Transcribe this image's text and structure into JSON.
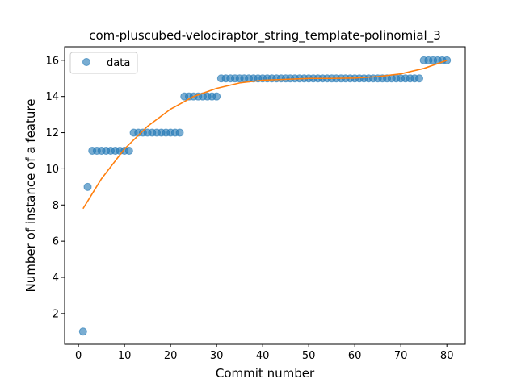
{
  "chart_data": {
    "type": "scatter",
    "title": "com-pluscubed-velociraptor_string_template-polinomial_3",
    "xlabel": "Commit number",
    "ylabel": "Number of instance of a feature",
    "xlim": [
      -3,
      84
    ],
    "ylim": [
      0.3,
      16.75
    ],
    "xticks": [
      0,
      10,
      20,
      30,
      40,
      50,
      60,
      70,
      80
    ],
    "yticks": [
      2,
      4,
      6,
      8,
      10,
      12,
      14,
      16
    ],
    "grid": false,
    "legend_position": "top-left",
    "series": [
      {
        "name": "data",
        "kind": "scatter",
        "color": "#1f77b4",
        "x": [
          1,
          2,
          3,
          4,
          5,
          6,
          7,
          8,
          9,
          10,
          11,
          12,
          13,
          14,
          15,
          16,
          17,
          18,
          19,
          20,
          21,
          22,
          23,
          24,
          25,
          26,
          27,
          28,
          29,
          30,
          31,
          32,
          33,
          34,
          35,
          36,
          37,
          38,
          39,
          40,
          41,
          42,
          43,
          44,
          45,
          46,
          47,
          48,
          49,
          50,
          51,
          52,
          53,
          54,
          55,
          56,
          57,
          58,
          59,
          60,
          61,
          62,
          63,
          64,
          65,
          66,
          67,
          68,
          69,
          70,
          71,
          72,
          73,
          74,
          75,
          76,
          77,
          78,
          79,
          80
        ],
        "y": [
          1,
          9,
          11,
          11,
          11,
          11,
          11,
          11,
          11,
          11,
          11,
          12,
          12,
          12,
          12,
          12,
          12,
          12,
          12,
          12,
          12,
          12,
          14,
          14,
          14,
          14,
          14,
          14,
          14,
          14,
          15,
          15,
          15,
          15,
          15,
          15,
          15,
          15,
          15,
          15,
          15,
          15,
          15,
          15,
          15,
          15,
          15,
          15,
          15,
          15,
          15,
          15,
          15,
          15,
          15,
          15,
          15,
          15,
          15,
          15,
          15,
          15,
          15,
          15,
          15,
          15,
          15,
          15,
          15,
          15,
          15,
          15,
          15,
          15,
          16,
          16,
          16,
          16,
          16,
          16
        ]
      },
      {
        "kind": "line",
        "color": "#ff7f0e",
        "x": [
          1,
          5,
          10,
          15,
          20,
          25,
          30,
          35,
          40,
          45,
          50,
          55,
          60,
          65,
          70,
          75,
          80
        ],
        "y": [
          7.8,
          9.45,
          11.1,
          12.35,
          13.3,
          14.0,
          14.45,
          14.75,
          14.9,
          14.95,
          15.0,
          15.0,
          15.02,
          15.1,
          15.25,
          15.55,
          16.0
        ]
      }
    ]
  }
}
